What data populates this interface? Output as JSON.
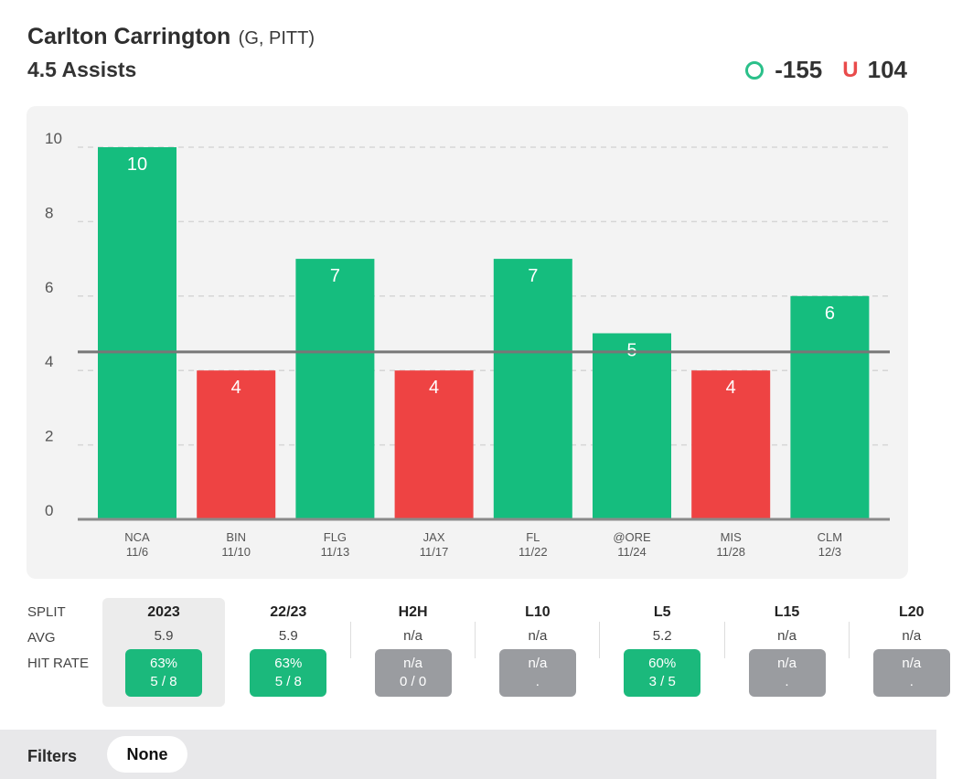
{
  "header": {
    "player_name": "Carlton Carrington",
    "player_meta": "(G, PITT)",
    "prop": "4.5 Assists",
    "over_odds": "-155",
    "under_label": "U",
    "under_odds": "104"
  },
  "colors": {
    "green": "#15bd7e",
    "red": "#ee4343",
    "line": "#777777",
    "grid": "#d6d6d6"
  },
  "chart_data": {
    "type": "bar",
    "title": "4.5 Assists",
    "categories": [
      "NCA",
      "BIN",
      "FLG",
      "JAX",
      "FL",
      "@ORE",
      "MIS",
      "CLM"
    ],
    "dates": [
      "11/6",
      "11/10",
      "11/13",
      "11/17",
      "11/22",
      "11/24",
      "11/28",
      "12/3"
    ],
    "values": [
      10,
      4,
      7,
      4,
      7,
      5,
      4,
      6
    ],
    "threshold": 4.5,
    "yticks": [
      0,
      2,
      4,
      6,
      8,
      10
    ],
    "ylim": [
      0,
      10
    ],
    "xlabel": "",
    "ylabel": ""
  },
  "splits": {
    "row_labels": {
      "split": "SPLIT",
      "avg": "AVG",
      "hit_rate": "HIT RATE"
    },
    "columns": [
      {
        "label": "2023",
        "avg": "5.9",
        "rate": "63%",
        "record": "5 / 8",
        "status": "green",
        "active": true
      },
      {
        "label": "22/23",
        "avg": "5.9",
        "rate": "63%",
        "record": "5 / 8",
        "status": "green",
        "active": false
      },
      {
        "label": "H2H",
        "avg": "n/a",
        "rate": "n/a",
        "record": "0 / 0",
        "status": "gray",
        "active": false
      },
      {
        "label": "L10",
        "avg": "n/a",
        "rate": "n/a",
        "record": ".",
        "status": "gray",
        "active": false
      },
      {
        "label": "L5",
        "avg": "5.2",
        "rate": "60%",
        "record": "3 / 5",
        "status": "green",
        "active": false
      },
      {
        "label": "L15",
        "avg": "n/a",
        "rate": "n/a",
        "record": ".",
        "status": "gray",
        "active": false
      },
      {
        "label": "L20",
        "avg": "n/a",
        "rate": "n/a",
        "record": ".",
        "status": "gray",
        "active": false
      }
    ]
  },
  "filters": {
    "label": "Filters",
    "value": "None"
  }
}
